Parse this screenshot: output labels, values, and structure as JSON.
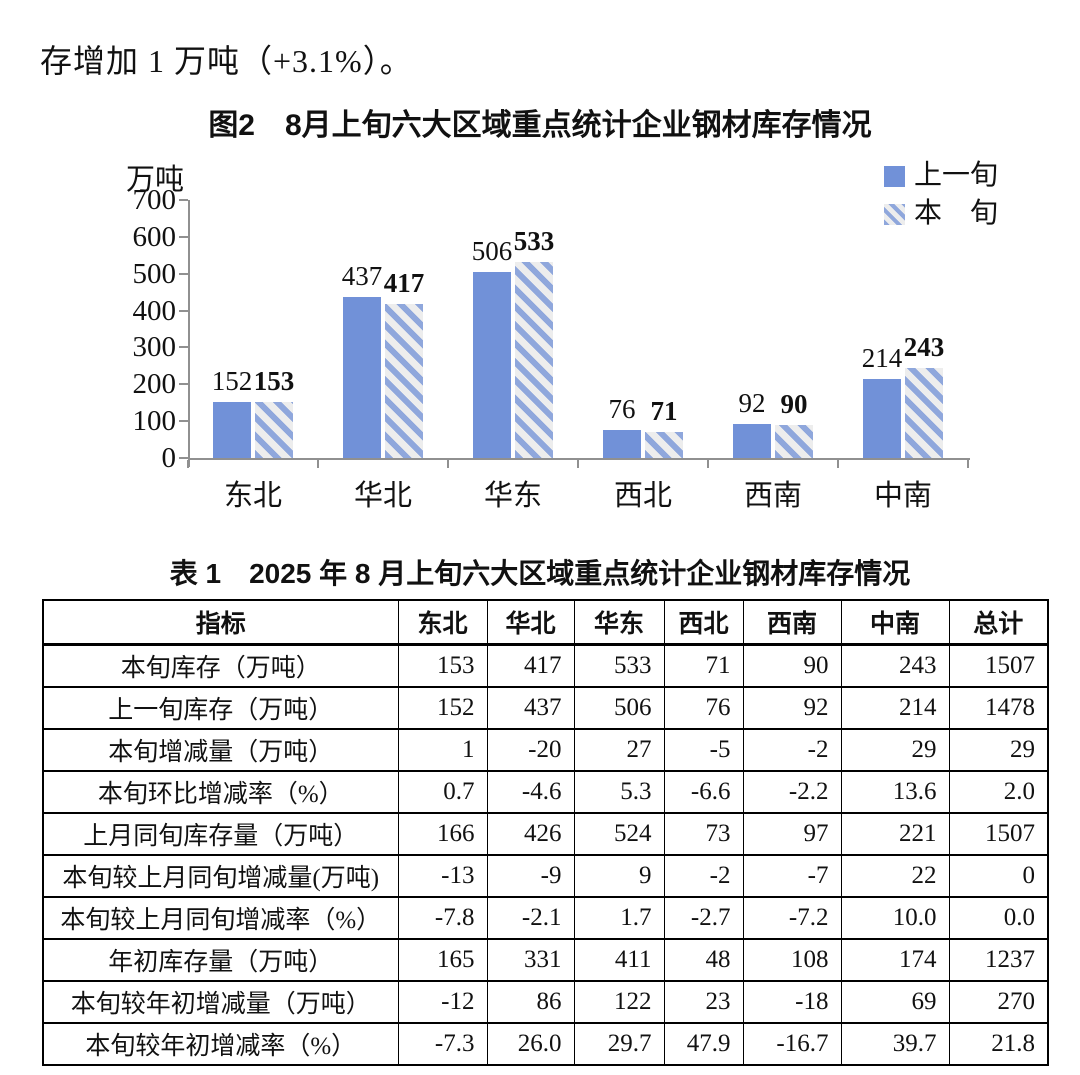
{
  "intro_text": "存增加 1 万吨（+3.1%）。",
  "chart": {
    "title": "图2　8月上旬六大区域重点统计企业钢材库存情况",
    "unit_label": "万吨",
    "legend": [
      "上一旬",
      "本　旬"
    ]
  },
  "chart_data": {
    "type": "bar",
    "title": "图2　8月上旬六大区域重点统计企业钢材库存情况",
    "categories": [
      "东北",
      "华北",
      "华东",
      "西北",
      "西南",
      "中南"
    ],
    "series": [
      {
        "name": "上一旬",
        "style": "solid",
        "values": [
          152,
          437,
          506,
          76,
          92,
          214
        ]
      },
      {
        "name": "本旬",
        "style": "hatched",
        "values": [
          153,
          417,
          533,
          71,
          90,
          243
        ]
      }
    ],
    "xlabel": "",
    "ylabel": "万吨",
    "ylim": [
      0,
      700
    ],
    "yticks": [
      0,
      100,
      200,
      300,
      400,
      500,
      600,
      700
    ],
    "grid": false,
    "legend_position": "top-right",
    "data_labels": true
  },
  "colors": {
    "bar_solid": "#7191d8",
    "bar_hatch_stripe": "#8fa7dc",
    "bar_hatch_bg": "#ededed",
    "axis": "#909090",
    "text": "#111111"
  },
  "table": {
    "title": "表 1　2025 年 8 月上旬六大区域重点统计企业钢材库存情况",
    "headers": [
      "指标",
      "东北",
      "华北",
      "华东",
      "西北",
      "西南",
      "中南",
      "总计"
    ],
    "rows": [
      {
        "label": "本旬库存（万吨）",
        "values": [
          "153",
          "417",
          "533",
          "71",
          "90",
          "243",
          "1507"
        ]
      },
      {
        "label": "上一旬库存（万吨）",
        "values": [
          "152",
          "437",
          "506",
          "76",
          "92",
          "214",
          "1478"
        ]
      },
      {
        "label": "本旬增减量（万吨）",
        "values": [
          "1",
          "-20",
          "27",
          "-5",
          "-2",
          "29",
          "29"
        ]
      },
      {
        "label": "本旬环比增减率（%）",
        "values": [
          "0.7",
          "-4.6",
          "5.3",
          "-6.6",
          "-2.2",
          "13.6",
          "2.0"
        ]
      },
      {
        "label": "上月同旬库存量（万吨）",
        "values": [
          "166",
          "426",
          "524",
          "73",
          "97",
          "221",
          "1507"
        ]
      },
      {
        "label": "本旬较上月同旬增减量(万吨)",
        "values": [
          "-13",
          "-9",
          "9",
          "-2",
          "-7",
          "22",
          "0"
        ]
      },
      {
        "label": "本旬较上月同旬增减率（%）",
        "values": [
          "-7.8",
          "-2.1",
          "1.7",
          "-2.7",
          "-7.2",
          "10.0",
          "0.0"
        ]
      },
      {
        "label": "年初库存量（万吨）",
        "values": [
          "165",
          "331",
          "411",
          "48",
          "108",
          "174",
          "1237"
        ]
      },
      {
        "label": "本旬较年初增减量（万吨）",
        "values": [
          "-12",
          "86",
          "122",
          "23",
          "-18",
          "69",
          "270"
        ]
      },
      {
        "label": "本旬较年初增减率（%）",
        "values": [
          "-7.3",
          "26.0",
          "29.7",
          "47.9",
          "-16.7",
          "39.7",
          "21.8"
        ]
      }
    ]
  }
}
